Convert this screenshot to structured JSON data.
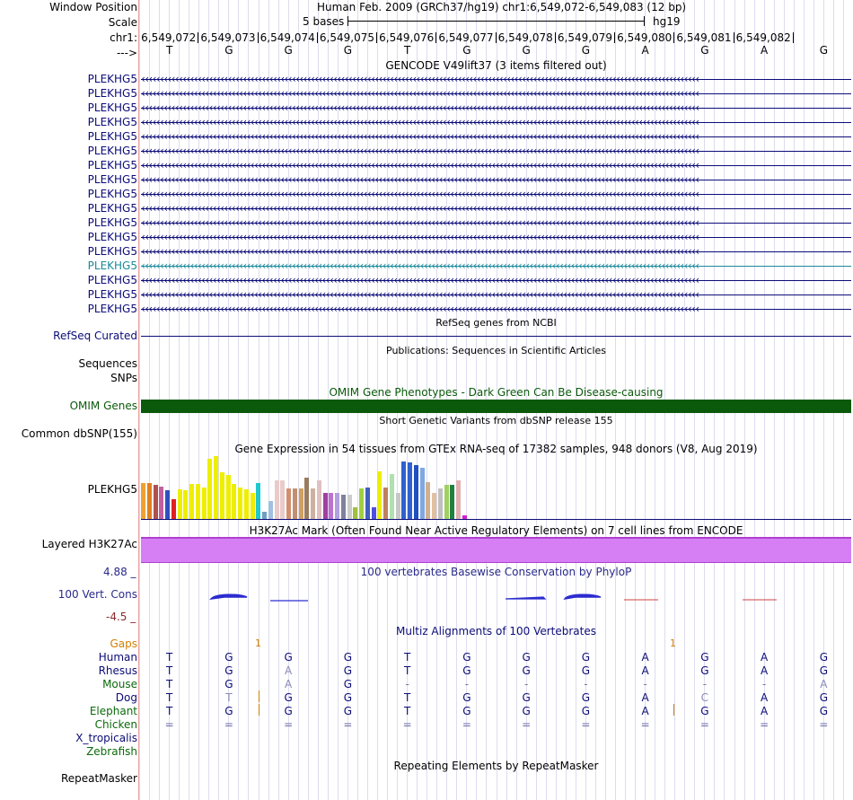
{
  "header": {
    "window_position_label": "Window Position",
    "window_position_value": "Human Feb. 2009 (GRCh37/hg19)   chr1:6,549,072-6,549,083 (12 bp)",
    "scale_label": "Scale",
    "scale_text": "5 bases",
    "assembly": "hg19",
    "chr_label": "chr1:",
    "positions": [
      "6,549,072",
      "6,549,073",
      "6,549,074",
      "6,549,075",
      "6,549,076",
      "6,549,077",
      "6,549,078",
      "6,549,079",
      "6,549,080",
      "6,549,081",
      "6,549,082"
    ],
    "strand_label": "--->",
    "bases": [
      "T",
      "G",
      "G",
      "G",
      "T",
      "G",
      "G",
      "G",
      "A",
      "G",
      "A",
      "G"
    ]
  },
  "gencode": {
    "title": "GENCODE V49lift37 (3 items filtered out)",
    "transcripts": [
      "PLEKHG5",
      "PLEKHG5",
      "PLEKHG5",
      "PLEKHG5",
      "PLEKHG5",
      "PLEKHG5",
      "PLEKHG5",
      "PLEKHG5",
      "PLEKHG5",
      "PLEKHG5",
      "PLEKHG5",
      "PLEKHG5",
      "PLEKHG5",
      "PLEKHG5",
      "PLEKHG5",
      "PLEKHG5",
      "PLEKHG5"
    ],
    "highlight_index": 13,
    "color": "#0c0c78",
    "highlight_color": "#1a8a9a"
  },
  "refseq": {
    "title": "RefSeq genes from NCBI",
    "label": "RefSeq Curated"
  },
  "publications": {
    "title": "Publications: Sequences in Scientific Articles",
    "label1": "Sequences",
    "label2": "SNPs"
  },
  "omim": {
    "title": "OMIM Gene Phenotypes - Dark Green Can Be Disease-causing",
    "label": "OMIM Genes",
    "color": "#0b5a0b"
  },
  "dbsnp": {
    "title": "Short Genetic Variants from dbSNP release 155",
    "label": "Common dbSNP(155)"
  },
  "gtex": {
    "title": "Gene Expression in 54 tissues from GTEx RNA-seq of 17382 samples, 948 donors (V8, Aug 2019)",
    "label": "PLEKHG5",
    "bars": [
      {
        "h": 0.57,
        "c": "#f0a030"
      },
      {
        "h": 0.57,
        "c": "#e08020"
      },
      {
        "h": 0.54,
        "c": "#b05050"
      },
      {
        "h": 0.51,
        "c": "#c060a0"
      },
      {
        "h": 0.45,
        "c": "#3050c0"
      },
      {
        "h": 0.32,
        "c": "#e02020"
      },
      {
        "h": 0.47,
        "c": "#eeee00"
      },
      {
        "h": 0.45,
        "c": "#eeee00"
      },
      {
        "h": 0.55,
        "c": "#eeee00"
      },
      {
        "h": 0.55,
        "c": "#eeee00"
      },
      {
        "h": 0.5,
        "c": "#eeee00"
      },
      {
        "h": 0.95,
        "c": "#eeee00"
      },
      {
        "h": 1.0,
        "c": "#eeee00"
      },
      {
        "h": 0.74,
        "c": "#eeee00"
      },
      {
        "h": 0.7,
        "c": "#eeee00"
      },
      {
        "h": 0.56,
        "c": "#eeee00"
      },
      {
        "h": 0.5,
        "c": "#eeee00"
      },
      {
        "h": 0.47,
        "c": "#eeee00"
      },
      {
        "h": 0.42,
        "c": "#eeee00"
      },
      {
        "h": 0.57,
        "c": "#20c8d0"
      },
      {
        "h": 0.12,
        "c": "#70a0c0"
      },
      {
        "h": 0.28,
        "c": "#a0c0e0"
      },
      {
        "h": 0.62,
        "c": "#eacaca"
      },
      {
        "h": 0.62,
        "c": "#eacaca"
      },
      {
        "h": 0.48,
        "c": "#d09070"
      },
      {
        "h": 0.48,
        "c": "#c09070"
      },
      {
        "h": 0.48,
        "c": "#d0a060"
      },
      {
        "h": 0.66,
        "c": "#9a7a60"
      },
      {
        "h": 0.48,
        "c": "#cfb0a0"
      },
      {
        "h": 0.62,
        "c": "#e0c0c0"
      },
      {
        "h": 0.42,
        "c": "#a040a0"
      },
      {
        "h": 0.42,
        "c": "#c070d0"
      },
      {
        "h": 0.42,
        "c": "#b0a0e0"
      },
      {
        "h": 0.38,
        "c": "#8080a0"
      },
      {
        "h": 0.38,
        "c": "#cccccc"
      },
      {
        "h": 0.18,
        "c": "#a0c040"
      },
      {
        "h": 0.48,
        "c": "#a0d040"
      },
      {
        "h": 0.5,
        "c": "#4060c0"
      },
      {
        "h": 0.18,
        "c": "#5050e0"
      },
      {
        "h": 0.75,
        "c": "#eeee00"
      },
      {
        "h": 0.5,
        "c": "#c08060"
      },
      {
        "h": 0.72,
        "c": "#b0e0b0"
      },
      {
        "h": 0.41,
        "c": "#c8c8c8"
      },
      {
        "h": 0.92,
        "c": "#3060d0"
      },
      {
        "h": 0.9,
        "c": "#3060d0"
      },
      {
        "h": 0.86,
        "c": "#2050c0"
      },
      {
        "h": 0.82,
        "c": "#80a8e0"
      },
      {
        "h": 0.58,
        "c": "#d0b090"
      },
      {
        "h": 0.42,
        "c": "#e0c0a0"
      },
      {
        "h": 0.48,
        "c": "#c0c0c0"
      },
      {
        "h": 0.54,
        "c": "#a0d060"
      },
      {
        "h": 0.54,
        "c": "#208040"
      },
      {
        "h": 0.62,
        "c": "#e0b0b0"
      },
      {
        "h": 0.05,
        "c": "#d020d0"
      }
    ]
  },
  "h3k27ac": {
    "title": "H3K27Ac Mark (Often Found Near Active Regulatory Elements) on 7 cell lines from ENCODE",
    "label": "Layered H3K27Ac",
    "color": "#d67ff5"
  },
  "phylop": {
    "title": "100 vertebrates Basewise Conservation by PhyloP",
    "label": "100 Vert. Cons",
    "max": "4.88 _",
    "min": "-4.5 _"
  },
  "multiz": {
    "title": "Multiz Alignments of 100 Vertebrates",
    "gaps_label": "Gaps",
    "gap_counts": [
      "1",
      "1"
    ],
    "species": [
      {
        "name": "Human",
        "color": "#0c0c78",
        "bases": [
          "T",
          "G",
          "G",
          "G",
          "T",
          "G",
          "G",
          "G",
          "A",
          "G",
          "A",
          "G"
        ]
      },
      {
        "name": "Rhesus",
        "color": "#0c0c78",
        "bases": [
          "T",
          "G",
          "A",
          "G",
          "T",
          "G",
          "G",
          "G",
          "A",
          "G",
          "A",
          "G"
        ]
      },
      {
        "name": "Mouse",
        "color": "#0b6a0b",
        "bases": [
          "T",
          "G",
          "A",
          "G",
          "-",
          "-",
          "-",
          "-",
          "-",
          "-",
          "-",
          "A"
        ]
      },
      {
        "name": "Dog",
        "color": "#0c0c78",
        "bases": [
          "T",
          "T",
          "G",
          "G",
          "T",
          "G",
          "G",
          "G",
          "A",
          "C",
          "A",
          "G"
        ]
      },
      {
        "name": "Elephant",
        "color": "#0b6a0b",
        "bases": [
          "T",
          "G",
          "G",
          "G",
          "T",
          "G",
          "G",
          "G",
          "A",
          "G",
          "A",
          "G"
        ]
      },
      {
        "name": "Chicken",
        "color": "#0b6a0b",
        "bases": [
          "=",
          "=",
          "=",
          "=",
          "=",
          "=",
          "=",
          "=",
          "=",
          "=",
          "=",
          "="
        ]
      },
      {
        "name": "X_tropicalis",
        "color": "#0c0c78",
        "bases": []
      },
      {
        "name": "Zebrafish",
        "color": "#0b6a0b",
        "bases": []
      }
    ]
  },
  "repeatmasker": {
    "title": "Repeating Elements by RepeatMasker",
    "label": "RepeatMasker"
  }
}
